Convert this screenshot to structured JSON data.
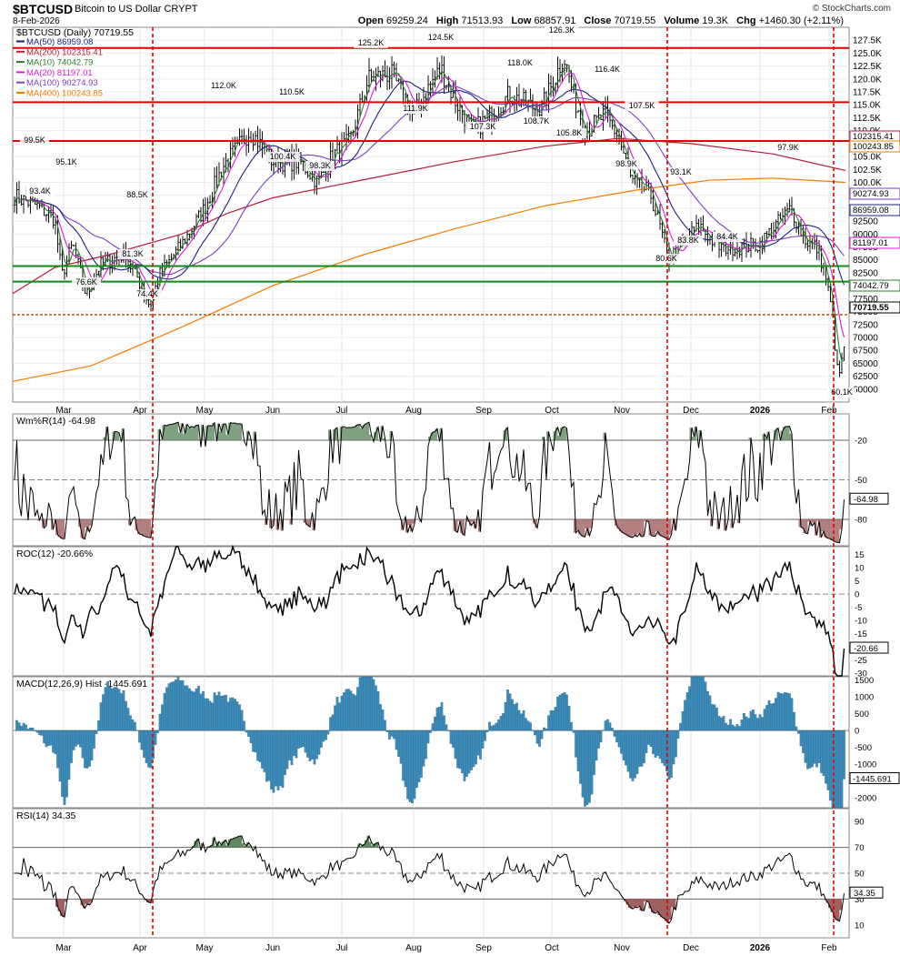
{
  "header": {
    "symbol": "$BTCUSD",
    "name": "Bitcoin to US Dollar",
    "exchange": "CRYPT",
    "date": "8-Feb-2026",
    "copyright": "© StockCharts.com",
    "open_label": "Open",
    "open": "69259.24",
    "high_label": "High",
    "high": "71513.93",
    "low_label": "Low",
    "low": "68857.91",
    "close_label": "Close",
    "close": "70719.55",
    "volume_label": "Volume",
    "volume": "19.3K",
    "chg_label": "Chg",
    "chg": "+1460.30 (+2.11%)"
  },
  "chart_data": [
    {
      "type": "ohlc",
      "title": "$BTCUSD (Daily) 70719.55",
      "x_labels": [
        "Mar",
        "Apr",
        "May",
        "Jun",
        "Jul",
        "Aug",
        "Sep",
        "Oct",
        "Nov",
        "Dec",
        "2026",
        "Feb"
      ],
      "ylim": [
        57500,
        130000
      ],
      "y_ticks": [
        "127.5K",
        "125.0K",
        "122.5K",
        "120.0K",
        "117.5K",
        "115.0K",
        "112.5K",
        "110.0K",
        "107.5K",
        "105.0K",
        "102.5K",
        "100.0K",
        "97500",
        "95000",
        "92500",
        "90000",
        "87500",
        "85000",
        "82500",
        "80000",
        "77500",
        "75000",
        "72500",
        "70000",
        "67500",
        "65000",
        "62500",
        "60000"
      ],
      "legend": [
        {
          "name": "MA(50) 86959.08",
          "color": "#1a237e"
        },
        {
          "name": "MA(200) 102315.41",
          "color": "#b71c3c"
        },
        {
          "name": "MA(10) 74042.79",
          "color": "#2e7d32"
        },
        {
          "name": "MA(20) 81197.01",
          "color": "#d81bd8"
        },
        {
          "name": "MA(100) 90274.93",
          "color": "#7b3fbf"
        },
        {
          "name": "MA(400) 100243.85",
          "color": "#f57c00"
        }
      ],
      "peak_labels": [
        "99.5K",
        "95.1K",
        "93.4K",
        "88.5K",
        "81.3K",
        "76.6K",
        "74.4K",
        "112.0K",
        "110.5K",
        "100.4K",
        "98.3K",
        "125.2K",
        "124.5K",
        "111.9K",
        "118.0K",
        "107.3K",
        "108.7K",
        "126.3K",
        "116.4K",
        "105.8K",
        "107.5K",
        "98.9K",
        "93.1K",
        "80.6K",
        "83.8K",
        "84.4K",
        "97.9K",
        "60.1K"
      ],
      "horizontal_lines": [
        {
          "value": "126000",
          "color": "#e00000"
        },
        {
          "value": "115500",
          "color": "#e00000"
        },
        {
          "value": "108000",
          "color": "#e00000"
        },
        {
          "value": "83800",
          "color": "#138a13"
        },
        {
          "value": "80800",
          "color": "#138a13"
        },
        {
          "value": "74400",
          "color": "#b34700",
          "style": "dotted"
        }
      ],
      "right_labels": [
        "102315.41",
        "100243.85",
        "90274.93",
        "86959.08",
        "81197.01",
        "74042.79",
        "70719.55"
      ]
    },
    {
      "type": "line",
      "title": "Wm%R(14) -64.98",
      "y_ticks": [
        "-20",
        "-50",
        "-80"
      ],
      "last": "-64.98",
      "ylim": [
        -100,
        0
      ]
    },
    {
      "type": "line",
      "title": "ROC(12) -20.66%",
      "y_ticks": [
        "15",
        "10",
        "5",
        "0",
        "-5",
        "-10",
        "-15",
        "-25",
        "-30"
      ],
      "last": "-20.66",
      "ylim": [
        -31,
        18
      ]
    },
    {
      "type": "bar",
      "title": "MACD(12,26,9) Hist -1445.691",
      "y_ticks": [
        "1500",
        "1000",
        "500",
        "0",
        "-500",
        "-1000",
        "-1500",
        "-2000"
      ],
      "last": "-1445.691",
      "ylim": [
        -2300,
        1600
      ]
    },
    {
      "type": "line",
      "title": "RSI(14) 34.35",
      "y_ticks": [
        "90",
        "70",
        "50",
        "30",
        "10"
      ],
      "last": "34.35",
      "ylim": [
        0,
        100
      ]
    }
  ]
}
